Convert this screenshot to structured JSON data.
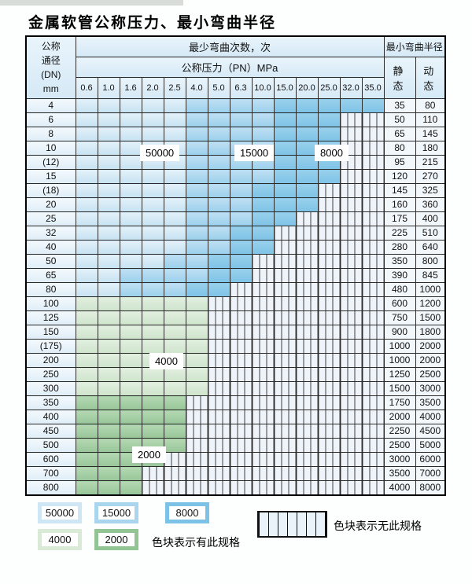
{
  "title": "金属软管公称压力、最小弯曲半径",
  "table": {
    "header": {
      "dn_lines": [
        "公称",
        "通径",
        "(DN)",
        "mm"
      ],
      "bend_times_label": "最少弯曲次数，次",
      "bend_radius_label": "最小弯曲半径",
      "pressure_label": "公称压力（PN）MPa",
      "pressure_values": [
        "0.6",
        "1.0",
        "1.6",
        "2.0",
        "2.5",
        "4.0",
        "5.0",
        "6.3",
        "10.0",
        "15.0",
        "20.0",
        "25.0",
        "32.0",
        "35.0"
      ],
      "static_label": "静 态",
      "dynamic_label": "动 态"
    },
    "rows": [
      {
        "dn": "4",
        "cells": "LLLLLMMMMDDDDD",
        "static": "35",
        "dynamic": "80"
      },
      {
        "dn": "6",
        "cells": "LLLLLMMMMDDDXX",
        "static": "50",
        "dynamic": "110"
      },
      {
        "dn": "8",
        "cells": "LLLLLMMMMDDDXX",
        "static": "65",
        "dynamic": "145"
      },
      {
        "dn": "10",
        "cells": "LLLLLMMMMDDDXX",
        "static": "80",
        "dynamic": "180"
      },
      {
        "dn": "(12)",
        "cells": "LLLLLMMMMDDDXX",
        "static": "95",
        "dynamic": "215"
      },
      {
        "dn": "15",
        "cells": "LLLLLMMMMDDDXX",
        "static": "120",
        "dynamic": "270"
      },
      {
        "dn": "(18)",
        "cells": "LLLLLMMMDDDXXX",
        "static": "145",
        "dynamic": "325"
      },
      {
        "dn": "20",
        "cells": "LLLLLMMMDDDXXX",
        "static": "160",
        "dynamic": "360"
      },
      {
        "dn": "25",
        "cells": "LLLLLMMMDDXXXX",
        "static": "175",
        "dynamic": "400"
      },
      {
        "dn": "32",
        "cells": "LLLLLMMDDXXXXX",
        "static": "225",
        "dynamic": "510"
      },
      {
        "dn": "40",
        "cells": "LLLLLMMDDXXXXX",
        "static": "280",
        "dynamic": "640"
      },
      {
        "dn": "50",
        "cells": "LLLLMMDDXXXXXX",
        "static": "350",
        "dynamic": "800"
      },
      {
        "dn": "65",
        "cells": "LLMMMMDDXXXXXX",
        "static": "390",
        "dynamic": "845"
      },
      {
        "dn": "80",
        "cells": "LLMMMDDXXXXXXX",
        "static": "480",
        "dynamic": "1000"
      },
      {
        "dn": "100",
        "cells": "ggggggXXXXXXXX",
        "static": "600",
        "dynamic": "1200"
      },
      {
        "dn": "125",
        "cells": "ggggggXXXXXXXX",
        "static": "750",
        "dynamic": "1500"
      },
      {
        "dn": "150",
        "cells": "ggggggXXXXXXXX",
        "static": "900",
        "dynamic": "1800"
      },
      {
        "dn": "(175)",
        "cells": "ggggggXXXXXXXX",
        "static": "1000",
        "dynamic": "2000"
      },
      {
        "dn": "200",
        "cells": "ggggggXXXXXXXX",
        "static": "1000",
        "dynamic": "2000"
      },
      {
        "dn": "250",
        "cells": "ggggggXXXXXXXX",
        "static": "1250",
        "dynamic": "2500"
      },
      {
        "dn": "300",
        "cells": "ggggggXXXXXXXX",
        "static": "1500",
        "dynamic": "3000"
      },
      {
        "dn": "350",
        "cells": "GGGGGXXXXXXXXX",
        "static": "1750",
        "dynamic": "3500"
      },
      {
        "dn": "400",
        "cells": "GGGGGXXXXXXXXX",
        "static": "2000",
        "dynamic": "4000"
      },
      {
        "dn": "450",
        "cells": "GGGGGXXXXXXXXX",
        "static": "2250",
        "dynamic": "4500"
      },
      {
        "dn": "500",
        "cells": "GGGGGXXXXXXXXX",
        "static": "2500",
        "dynamic": "5000"
      },
      {
        "dn": "600",
        "cells": "GGGGXXXXXXXXXX",
        "static": "3000",
        "dynamic": "6000"
      },
      {
        "dn": "700",
        "cells": "GGGXXXXXXXXXXX",
        "static": "3500",
        "dynamic": "7000"
      },
      {
        "dn": "800",
        "cells": "GGGXXXXXXXXXXX",
        "static": "4000",
        "dynamic": "8000"
      }
    ],
    "region_labels": [
      {
        "text": "50000"
      },
      {
        "text": "15000"
      },
      {
        "text": "8000"
      },
      {
        "text": "4000"
      },
      {
        "text": "2000"
      }
    ]
  },
  "legend": {
    "items": [
      {
        "value": "50000",
        "color": "#cfe7f5"
      },
      {
        "value": "15000",
        "color": "#a9d5ef"
      },
      {
        "value": "8000",
        "color": "#7cc2e6"
      },
      {
        "value": "4000",
        "color": "#d9ebd7"
      },
      {
        "value": "2000",
        "color": "#92c494"
      }
    ],
    "has_spec_text": "色块表示有此规格",
    "no_spec_text": "色块表示无此规格"
  },
  "colors": {
    "blue_50000": "#cfe6f4",
    "blue_15000": "#a9d5ef",
    "blue_8000": "#85c6e9",
    "green_4000": "#d6e8d4",
    "green_2000": "#9fcba1",
    "hatch_bg": "#eef4f9"
  },
  "chart_data": {
    "type": "table",
    "title": "金属软管公称压力、最小弯曲半径",
    "column_group_label": "最少弯曲次数，次",
    "pressure_label": "公称压力（PN）MPa",
    "pressure_columns_MPa": [
      0.6,
      1.0,
      1.6,
      2.0,
      2.5,
      4.0,
      5.0,
      6.3,
      10.0,
      15.0,
      20.0,
      25.0,
      32.0,
      35.0
    ],
    "code_values": {
      "L": 50000,
      "M": 15000,
      "D": 8000,
      "g": 4000,
      "G": 2000,
      "X": null
    },
    "legend_note_has": "色块表示有此规格",
    "legend_note_no": "色块表示无此规格",
    "rows": [
      {
        "dn": "4",
        "codes": "LLLLLMMMMDDDDD",
        "radius_static": 35,
        "radius_dynamic": 80
      },
      {
        "dn": "6",
        "codes": "LLLLLMMMMDDDXX",
        "radius_static": 50,
        "radius_dynamic": 110
      },
      {
        "dn": "8",
        "codes": "LLLLLMMMMDDDXX",
        "radius_static": 65,
        "radius_dynamic": 145
      },
      {
        "dn": "10",
        "codes": "LLLLLMMMMDDDXX",
        "radius_static": 80,
        "radius_dynamic": 180
      },
      {
        "dn": "(12)",
        "codes": "LLLLLMMMMDDDXX",
        "radius_static": 95,
        "radius_dynamic": 215
      },
      {
        "dn": "15",
        "codes": "LLLLLMMMMDDDXX",
        "radius_static": 120,
        "radius_dynamic": 270
      },
      {
        "dn": "(18)",
        "codes": "LLLLLMMMDDDXXX",
        "radius_static": 145,
        "radius_dynamic": 325
      },
      {
        "dn": "20",
        "codes": "LLLLLMMMDDDXXX",
        "radius_static": 160,
        "radius_dynamic": 360
      },
      {
        "dn": "25",
        "codes": "LLLLLMMMDDXXXX",
        "radius_static": 175,
        "radius_dynamic": 400
      },
      {
        "dn": "32",
        "codes": "LLLLLMMDDXXXXX",
        "radius_static": 225,
        "radius_dynamic": 510
      },
      {
        "dn": "40",
        "codes": "LLLLLMMDDXXXXX",
        "radius_static": 280,
        "radius_dynamic": 640
      },
      {
        "dn": "50",
        "codes": "LLLLMMDDXXXXXX",
        "radius_static": 350,
        "radius_dynamic": 800
      },
      {
        "dn": "65",
        "codes": "LLMMMMDDXXXXXX",
        "radius_static": 390,
        "radius_dynamic": 845
      },
      {
        "dn": "80",
        "codes": "LLMMMDDXXXXXXX",
        "radius_static": 480,
        "radius_dynamic": 1000
      },
      {
        "dn": "100",
        "codes": "ggggggXXXXXXXX",
        "radius_static": 600,
        "radius_dynamic": 1200
      },
      {
        "dn": "125",
        "codes": "ggggggXXXXXXXX",
        "radius_static": 750,
        "radius_dynamic": 1500
      },
      {
        "dn": "150",
        "codes": "ggggggXXXXXXXX",
        "radius_static": 900,
        "radius_dynamic": 1800
      },
      {
        "dn": "(175)",
        "codes": "ggggggXXXXXXXX",
        "radius_static": 1000,
        "radius_dynamic": 2000
      },
      {
        "dn": "200",
        "codes": "ggggggXXXXXXXX",
        "radius_static": 1000,
        "radius_dynamic": 2000
      },
      {
        "dn": "250",
        "codes": "ggggggXXXXXXXX",
        "radius_static": 1250,
        "radius_dynamic": 2500
      },
      {
        "dn": "300",
        "codes": "ggggggXXXXXXXX",
        "radius_static": 1500,
        "radius_dynamic": 3000
      },
      {
        "dn": "350",
        "codes": "GGGGGXXXXXXXXX",
        "radius_static": 1750,
        "radius_dynamic": 3500
      },
      {
        "dn": "400",
        "codes": "GGGGGXXXXXXXXX",
        "radius_static": 2000,
        "radius_dynamic": 4000
      },
      {
        "dn": "450",
        "codes": "GGGGGXXXXXXXXX",
        "radius_static": 2250,
        "radius_dynamic": 4500
      },
      {
        "dn": "500",
        "codes": "GGGGGXXXXXXXXX",
        "radius_static": 2500,
        "radius_dynamic": 5000
      },
      {
        "dn": "600",
        "codes": "GGGGXXXXXXXXXX",
        "radius_static": 3000,
        "radius_dynamic": 6000
      },
      {
        "dn": "700",
        "codes": "GGGXXXXXXXXXXX",
        "radius_static": 3500,
        "radius_dynamic": 7000
      },
      {
        "dn": "800",
        "codes": "GGGXXXXXXXXXXX",
        "radius_static": 4000,
        "radius_dynamic": 8000
      }
    ]
  }
}
